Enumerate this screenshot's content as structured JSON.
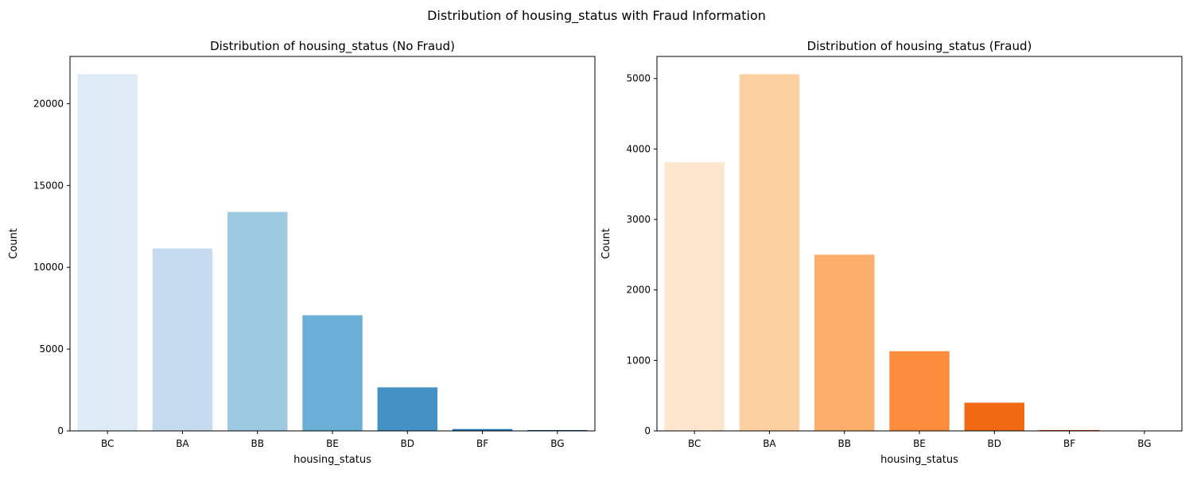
{
  "figure": {
    "title": "Distribution of housing_status with Fraud Information"
  },
  "chart_data": [
    {
      "type": "bar",
      "title": "Distribution of housing_status (No Fraud)",
      "xlabel": "housing_status",
      "ylabel": "Count",
      "categories": [
        "BC",
        "BA",
        "BB",
        "BE",
        "BD",
        "BF",
        "BG"
      ],
      "values": [
        21800,
        11150,
        13380,
        7070,
        2660,
        110,
        50
      ],
      "ylim": [
        0,
        22890
      ],
      "yticks": [
        0,
        5000,
        10000,
        15000,
        20000
      ],
      "colors": [
        "#deebf7",
        "#c6dbef",
        "#9ecae1",
        "#6baed6",
        "#4292c6",
        "#2171b5",
        "#08519c"
      ]
    },
    {
      "type": "bar",
      "title": "Distribution of housing_status (Fraud)",
      "xlabel": "housing_status",
      "ylabel": "Count",
      "categories": [
        "BC",
        "BA",
        "BB",
        "BE",
        "BD",
        "BF",
        "BG"
      ],
      "values": [
        3810,
        5060,
        2500,
        1130,
        400,
        12,
        2
      ],
      "ylim": [
        0,
        5313
      ],
      "yticks": [
        0,
        1000,
        2000,
        3000,
        4000,
        5000
      ],
      "colors": [
        "#fde6ce",
        "#fdd0a2",
        "#fdae6b",
        "#fd8d3c",
        "#f16913",
        "#d94801",
        "#a63603"
      ]
    }
  ]
}
